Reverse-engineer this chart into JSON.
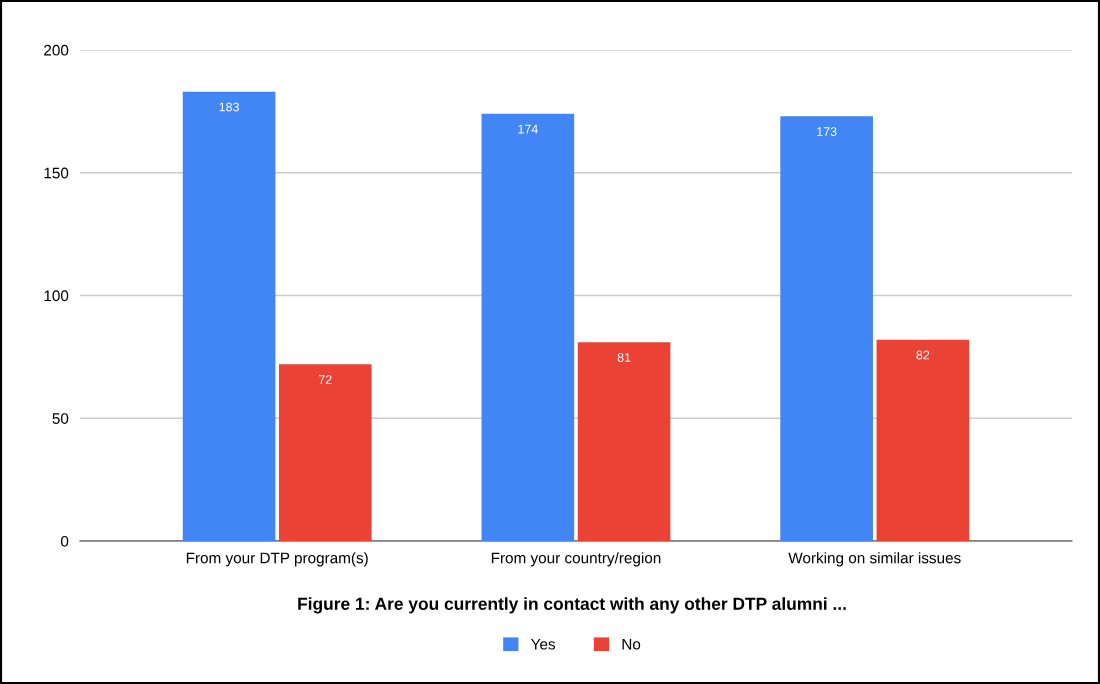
{
  "chart_data": {
    "type": "bar",
    "title": "Figure 1: Are you currently in contact with any other DTP alumni ...",
    "categories": [
      "From your DTP program(s)",
      "From your country/region",
      "Working on similar issues"
    ],
    "series": [
      {
        "name": "Yes",
        "color": "#4285f4",
        "values": [
          183,
          174,
          173
        ]
      },
      {
        "name": "No",
        "color": "#ea4335",
        "values": [
          72,
          81,
          82
        ]
      }
    ],
    "ylim": [
      0,
      200
    ],
    "yticks": [
      0,
      50,
      100,
      150,
      200
    ],
    "grid": "y",
    "legend": "bottom",
    "data_labels": true
  }
}
